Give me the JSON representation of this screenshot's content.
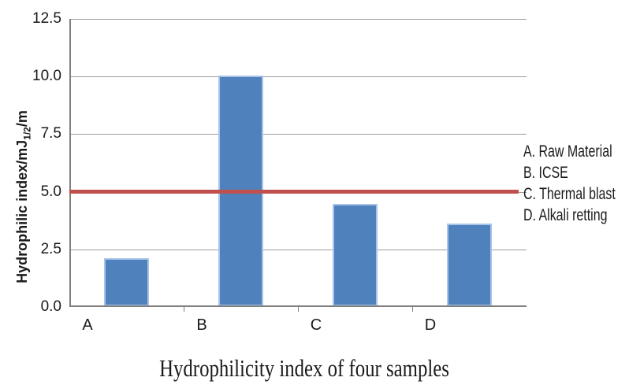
{
  "chart_data": {
    "type": "bar",
    "title": "Hydrophilicity index of four samples",
    "categories": [
      "A",
      "B",
      "C",
      "D"
    ],
    "values": [
      2.1,
      10.0,
      4.45,
      3.6
    ],
    "ylim": [
      0,
      12.5
    ],
    "ytick_step": 2.5,
    "yticks": [
      "0.0",
      "2.5",
      "5.0",
      "7.5",
      "10.0",
      "12.5"
    ],
    "xlabel": "",
    "ylabel": "Hydrophilic index/mJ1/2/m",
    "ylabel_main": "Hydrophilic index/mJ",
    "ylabel_sub": "1/2",
    "ylabel_suffix": "/m",
    "grid": true,
    "reference_line": {
      "value": 5.0,
      "color": "#C0504D"
    },
    "legend_position": "right",
    "legend": [
      "A. Raw Material",
      "B. ICSE",
      "C. Thermal blast",
      "D. Alkali retting"
    ],
    "colors": {
      "bar_fill": "#4F81BD",
      "bar_border": "#A9C4E8",
      "reference_line": "#C0504D",
      "gridline": "#9C9C9C",
      "axis": "#7F7F7F",
      "text": "#1A1A1A"
    }
  }
}
